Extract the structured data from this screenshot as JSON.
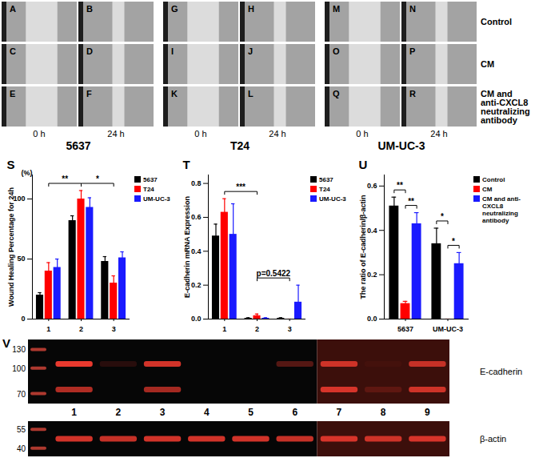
{
  "figure_panels": {
    "letters": [
      [
        "A",
        "B",
        "G",
        "H",
        "M",
        "N"
      ],
      [
        "C",
        "D",
        "I",
        "J",
        "O",
        "P"
      ],
      [
        "E",
        "F",
        "K",
        "L",
        "Q",
        "R"
      ]
    ],
    "row_labels": [
      "Control",
      "CM",
      "CM and anti-CXCL8 neutralizing antibody"
    ],
    "time_labels": [
      "0 h",
      "24 h"
    ],
    "cell_lines": [
      "5637",
      "T24",
      "UM-UC-3"
    ]
  },
  "chart_data": [
    {
      "type": "bar",
      "panel": "S",
      "y_unit": "(%)",
      "ylabel": "Wound Healing Percentage for 24h",
      "categories": [
        "1",
        "2",
        "3"
      ],
      "series": [
        {
          "name": "5637",
          "color": "#000000",
          "values": [
            20,
            82,
            48
          ],
          "errors": [
            2,
            4,
            4
          ]
        },
        {
          "name": "T24",
          "color": "#ff0000",
          "values": [
            40,
            100,
            30
          ],
          "errors": [
            7,
            7,
            6
          ]
        },
        {
          "name": "UM-UC-3",
          "color": "#1a1aff",
          "values": [
            43,
            93,
            51
          ],
          "errors": [
            7,
            8,
            5
          ]
        }
      ],
      "ylim": [
        0,
        120
      ],
      "yticks": [
        0,
        50,
        100
      ],
      "legend": "right",
      "annotations": [
        {
          "text": "**",
          "from": "1",
          "to": "2"
        },
        {
          "text": "*",
          "from": "2",
          "to": "3"
        }
      ]
    },
    {
      "type": "bar",
      "panel": "T",
      "ylabel": "E-cadherin mRNA Expression",
      "categories": [
        "1",
        "2",
        "3"
      ],
      "series": [
        {
          "name": "5637",
          "color": "#000000",
          "values": [
            0.49,
            0.005,
            0.005
          ],
          "errors": [
            0.07,
            0.003,
            0.003
          ]
        },
        {
          "name": "T24",
          "color": "#ff0000",
          "values": [
            0.63,
            0.02,
            0.0
          ],
          "errors": [
            0.08,
            0.01,
            0.0
          ]
        },
        {
          "name": "UM-UC-3",
          "color": "#1a1aff",
          "values": [
            0.5,
            0.005,
            0.1
          ],
          "errors": [
            0.18,
            0.003,
            0.1
          ]
        }
      ],
      "ylim": [
        0,
        0.85
      ],
      "yticks": [
        {
          "value": 0,
          "label": "0.0"
        },
        {
          "value": 0.2,
          "label": "0.2"
        },
        {
          "value": 0.4,
          "label": "0.4"
        },
        {
          "value": 0.6,
          "label": "0.6"
        },
        {
          "value": 0.8,
          "label": "0.8"
        }
      ],
      "legend": "right",
      "annotations": [
        {
          "text": "***",
          "from": "1",
          "to": "2"
        },
        {
          "text": "p=0.5422",
          "from": "2",
          "to": "3"
        }
      ]
    },
    {
      "type": "bar",
      "panel": "U",
      "ylabel": "The ratio of E-cadherin/β-actin",
      "categories": [
        "5637",
        "UM-UC-3"
      ],
      "series": [
        {
          "name": "Control",
          "color": "#000000",
          "values": [
            0.51,
            0.34
          ],
          "errors": [
            0.04,
            0.07
          ]
        },
        {
          "name": "CM",
          "color": "#ff0000",
          "values": [
            0.07,
            0.0
          ],
          "errors": [
            0.01,
            0.0
          ]
        },
        {
          "name": "CM and anti-CXCL8 neutralizing antibody",
          "color": "#1a1aff",
          "values": [
            0.43,
            0.25
          ],
          "errors": [
            0.05,
            0.05
          ]
        }
      ],
      "ylim": [
        0,
        0.65
      ],
      "yticks": [
        {
          "value": 0,
          "label": "0.0"
        },
        {
          "value": 0.2,
          "label": "0.2"
        },
        {
          "value": 0.4,
          "label": "0.4"
        },
        {
          "value": 0.6,
          "label": "0.6"
        }
      ],
      "legend": "right",
      "annotations": [
        {
          "text": "**",
          "from": [
            "5637",
            "Control"
          ],
          "to": [
            "5637",
            "CM"
          ]
        },
        {
          "text": "**",
          "from": [
            "5637",
            "CM"
          ],
          "to": [
            "5637",
            "CM and anti-CXCL8 neutralizing antibody"
          ]
        },
        {
          "text": "*",
          "from": [
            "UM-UC-3",
            "Control"
          ],
          "to": [
            "UM-UC-3",
            "CM"
          ]
        },
        {
          "text": "*",
          "from": [
            "UM-UC-3",
            "CM"
          ],
          "to": [
            "UM-UC-3",
            "CM and anti-CXCL8 neutralizing antibody"
          ]
        }
      ]
    }
  ],
  "blot": {
    "panel": "V",
    "lanes": [
      "1",
      "2",
      "3",
      "4",
      "5",
      "6",
      "7",
      "8",
      "9"
    ],
    "gel_lane_counts": [
      6,
      3
    ],
    "blots": [
      {
        "label": "E-cadherin",
        "markers": [
          130,
          100,
          70
        ],
        "bands": [
          [
            1,
            0.15,
            0.9,
            0,
            0,
            0.35,
            0.85,
            0.05,
            0.8
          ],
          [
            0.75,
            0,
            0.7,
            0,
            0,
            0,
            0.9,
            0.2,
            0.85
          ]
        ]
      },
      {
        "label": "β-actin",
        "markers": [
          55,
          40
        ],
        "bands": [
          [
            0.9,
            0.85,
            0.9,
            0.9,
            0.9,
            0.85,
            0.9,
            0.85,
            0.9
          ]
        ]
      }
    ]
  }
}
